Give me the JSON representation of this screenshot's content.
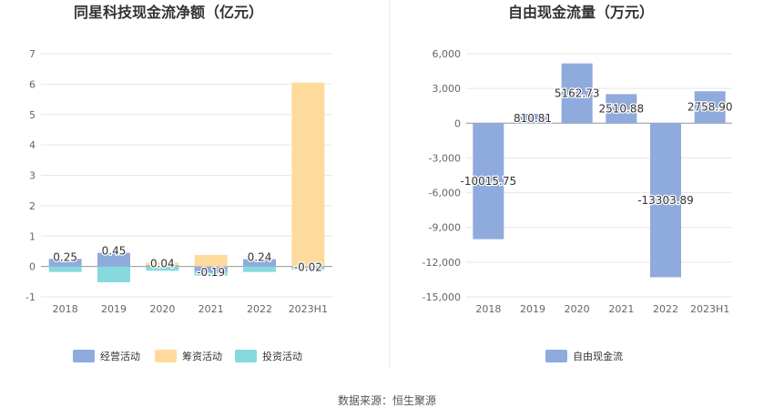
{
  "footer": {
    "source_label": "数据来源：",
    "source_value": "恒生聚源"
  },
  "chart_data": [
    {
      "type": "bar",
      "title": "同星科技现金流净额（亿元）",
      "categories": [
        "2018",
        "2019",
        "2020",
        "2021",
        "2022",
        "2023H1"
      ],
      "ylim": [
        -1,
        7
      ],
      "yticks": [
        -1,
        0,
        1,
        2,
        3,
        4,
        5,
        6,
        7
      ],
      "grid": true,
      "legend_position": "bottom",
      "series": [
        {
          "name": "经营活动",
          "color": "#8faadc",
          "values": [
            0.25,
            0.45,
            0.04,
            -0.19,
            0.24,
            -0.02
          ]
        },
        {
          "name": "筹资活动",
          "color": "#fedb9d",
          "values": [
            0.0,
            0.17,
            0.13,
            0.38,
            0.12,
            6.05
          ]
        },
        {
          "name": "投资活动",
          "color": "#86d9de",
          "values": [
            -0.18,
            -0.52,
            -0.14,
            -0.3,
            -0.18,
            -0.1
          ]
        }
      ],
      "data_labels": [
        "0.25",
        "0.45",
        "0.04",
        "-0.19",
        "0.24",
        "-0.02"
      ]
    },
    {
      "type": "bar",
      "title": "自由现金流量（万元）",
      "categories": [
        "2018",
        "2019",
        "2020",
        "2021",
        "2022",
        "2023H1"
      ],
      "ylim": [
        -15000,
        6000
      ],
      "yticks": [
        -15000,
        -12000,
        -9000,
        -6000,
        -3000,
        0,
        3000,
        6000
      ],
      "ytick_labels": [
        "-15,000",
        "-12,000",
        "-9,000",
        "-6,000",
        "-3,000",
        "0",
        "3,000",
        "6,000"
      ],
      "grid": true,
      "legend_position": "bottom",
      "series": [
        {
          "name": "自由现金流",
          "color": "#8faadc",
          "values": [
            -10015.75,
            810.81,
            5162.73,
            2510.88,
            -13303.89,
            2758.9
          ]
        }
      ],
      "data_labels": [
        "-10015.75",
        "810.81",
        "5162.73",
        "2510.88",
        "-13303.89",
        "2758.90"
      ]
    }
  ]
}
